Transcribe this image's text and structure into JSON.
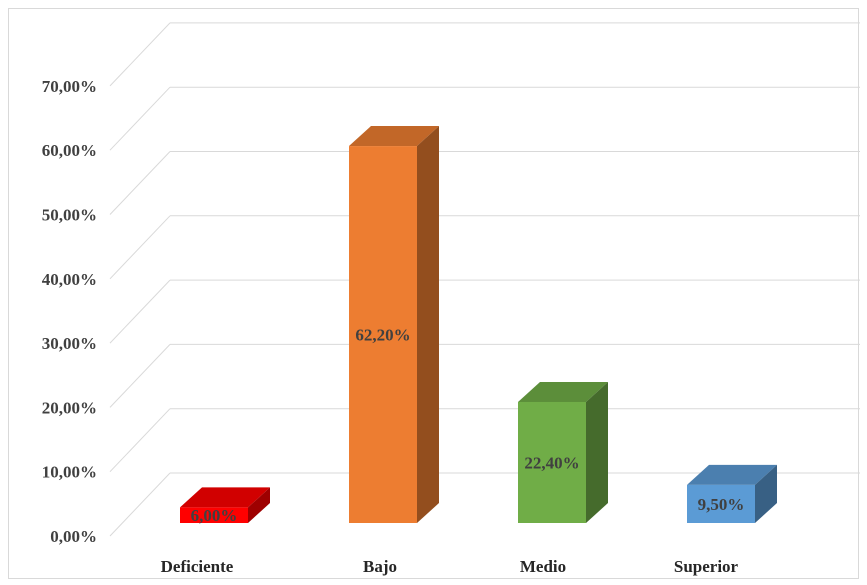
{
  "chart_data": {
    "type": "bar",
    "style": "3d-column",
    "categories": [
      "Deficiente",
      "Bajo",
      "Medio",
      "Superior"
    ],
    "values": [
      6.0,
      62.2,
      22.4,
      9.5
    ],
    "data_labels": [
      "6,00%",
      "62,20%",
      "22,40%",
      "9,50%"
    ],
    "colors": [
      "#ff0000",
      "#ed7d31",
      "#70ad47",
      "#5b9bd5"
    ],
    "ylim": [
      0,
      70
    ],
    "yticks": [
      0,
      10,
      20,
      30,
      40,
      50,
      60,
      70
    ],
    "ytick_labels": [
      "0,00%",
      "10,00%",
      "20,00%",
      "30,00%",
      "40,00%",
      "50,00%",
      "60,00%",
      "70,00%"
    ],
    "grid": true,
    "legend": false
  }
}
